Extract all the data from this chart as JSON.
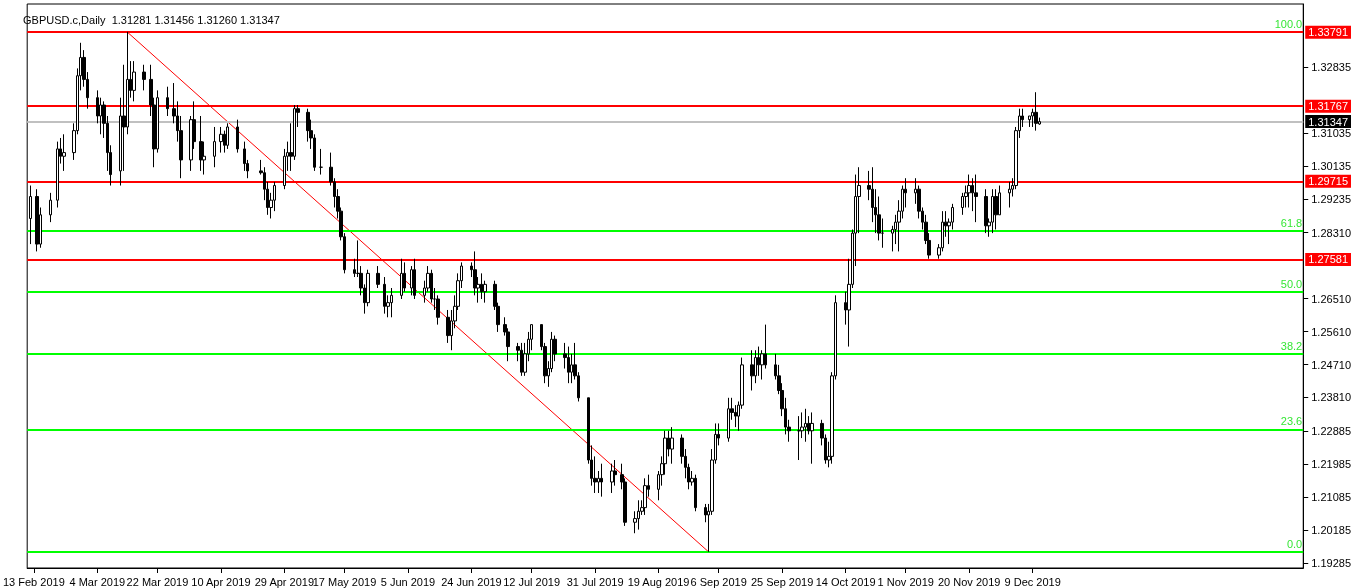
{
  "chart_data": {
    "type": "candlestick",
    "title": "GBPUSD.c,Daily  1.31281 1.31456 1.31260 1.31347",
    "x": [
      "2019-02-12",
      "2019-02-14",
      "2019-02-15",
      "2019-02-18",
      "2019-02-20",
      "2019-02-21",
      "2019-02-22",
      "2019-02-25",
      "2019-02-26",
      "2019-02-27",
      "2019-02-28",
      "2019-03-01",
      "2019-03-04",
      "2019-03-05",
      "2019-03-06",
      "2019-03-07",
      "2019-03-08",
      "2019-03-11",
      "2019-03-12",
      "2019-03-13",
      "2019-03-14",
      "2019-03-15",
      "2019-03-18",
      "2019-03-20",
      "2019-03-21",
      "2019-03-22",
      "2019-03-25",
      "2019-03-27",
      "2019-03-28",
      "2019-03-29",
      "2019-04-01",
      "2019-04-02",
      "2019-04-04",
      "2019-04-05",
      "2019-04-08",
      "2019-04-10",
      "2019-04-11",
      "2019-04-12",
      "2019-04-15",
      "2019-04-17",
      "2019-04-18",
      "2019-04-22",
      "2019-04-23",
      "2019-04-24",
      "2019-04-25",
      "2019-04-26",
      "2019-04-29",
      "2019-04-30",
      "2019-05-01",
      "2019-05-02",
      "2019-05-03",
      "2019-05-06",
      "2019-05-07",
      "2019-05-08",
      "2019-05-10",
      "2019-05-13",
      "2019-05-14",
      "2019-05-15",
      "2019-05-16",
      "2019-05-17",
      "2019-05-20",
      "2019-05-21",
      "2019-05-22",
      "2019-05-23",
      "2019-05-24",
      "2019-05-27",
      "2019-05-29",
      "2019-05-30",
      "2019-05-31",
      "2019-06-03",
      "2019-06-04",
      "2019-06-06",
      "2019-06-07",
      "2019-06-10",
      "2019-06-11",
      "2019-06-12",
      "2019-06-13",
      "2019-06-14",
      "2019-06-17",
      "2019-06-18",
      "2019-06-19",
      "2019-06-20",
      "2019-06-21",
      "2019-06-24",
      "2019-06-25",
      "2019-06-26",
      "2019-06-27",
      "2019-06-28",
      "2019-07-01",
      "2019-07-02",
      "2019-07-04",
      "2019-07-05",
      "2019-07-08",
      "2019-07-09",
      "2019-07-10",
      "2019-07-11",
      "2019-07-12",
      "2019-07-15",
      "2019-07-16",
      "2019-07-17",
      "2019-07-18",
      "2019-07-19",
      "2019-07-22",
      "2019-07-23",
      "2019-07-24",
      "2019-07-25",
      "2019-07-26",
      "2019-07-29",
      "2019-07-30",
      "2019-07-31",
      "2019-08-01",
      "2019-08-02",
      "2019-08-05",
      "2019-08-06",
      "2019-08-08",
      "2019-08-09",
      "2019-08-12",
      "2019-08-13",
      "2019-08-14",
      "2019-08-15",
      "2019-08-16",
      "2019-08-19",
      "2019-08-20",
      "2019-08-21",
      "2019-08-22",
      "2019-08-23",
      "2019-08-26",
      "2019-08-27",
      "2019-08-28",
      "2019-08-29",
      "2019-08-30",
      "2019-09-02",
      "2019-09-03",
      "2019-09-04",
      "2019-09-05",
      "2019-09-06",
      "2019-09-09",
      "2019-09-10",
      "2019-09-11",
      "2019-09-12",
      "2019-09-13",
      "2019-09-16",
      "2019-09-17",
      "2019-09-18",
      "2019-09-19",
      "2019-09-20",
      "2019-09-23",
      "2019-09-24",
      "2019-09-25",
      "2019-09-26",
      "2019-09-27",
      "2019-09-30",
      "2019-10-01",
      "2019-10-02",
      "2019-10-03",
      "2019-10-04",
      "2019-10-07",
      "2019-10-08",
      "2019-10-09",
      "2019-10-10",
      "2019-10-11",
      "2019-10-14",
      "2019-10-15",
      "2019-10-16",
      "2019-10-17",
      "2019-10-18",
      "2019-10-21",
      "2019-10-22",
      "2019-10-23",
      "2019-10-24",
      "2019-10-25",
      "2019-10-28",
      "2019-10-29",
      "2019-10-30",
      "2019-10-31",
      "2019-11-01",
      "2019-11-04",
      "2019-11-05",
      "2019-11-06",
      "2019-11-07",
      "2019-11-08",
      "2019-11-11",
      "2019-11-12",
      "2019-11-13",
      "2019-11-14",
      "2019-11-15",
      "2019-11-18",
      "2019-11-19",
      "2019-11-20",
      "2019-11-21",
      "2019-11-22",
      "2019-11-25",
      "2019-11-26",
      "2019-11-27",
      "2019-11-28",
      "2019-11-29",
      "2019-12-02",
      "2019-12-03",
      "2019-12-04",
      "2019-12-05",
      "2019-12-06",
      "2019-12-08",
      "2019-12-09",
      "2019-12-10",
      "2019-12-11"
    ],
    "ohlc": [
      [
        1.287,
        1.296,
        1.28,
        1.293
      ],
      [
        1.293,
        1.295,
        1.278,
        1.28
      ],
      [
        1.28,
        1.29,
        1.279,
        1.288
      ],
      [
        1.288,
        1.294,
        1.286,
        1.292
      ],
      [
        1.292,
        1.308,
        1.29,
        1.306
      ],
      [
        1.306,
        1.309,
        1.302,
        1.304
      ],
      [
        1.304,
        1.31,
        1.3,
        1.305
      ],
      [
        1.305,
        1.313,
        1.303,
        1.311
      ],
      [
        1.311,
        1.328,
        1.31,
        1.326
      ],
      [
        1.326,
        1.335,
        1.322,
        1.331
      ],
      [
        1.331,
        1.333,
        1.323,
        1.325
      ],
      [
        1.325,
        1.327,
        1.317,
        1.32
      ],
      [
        1.32,
        1.322,
        1.313,
        1.315
      ],
      [
        1.315,
        1.32,
        1.31,
        1.318
      ],
      [
        1.318,
        1.319,
        1.309,
        1.313
      ],
      [
        1.313,
        1.315,
        1.3,
        1.305
      ],
      [
        1.305,
        1.307,
        1.296,
        1.299
      ],
      [
        1.3,
        1.32,
        1.296,
        1.315
      ],
      [
        1.315,
        1.329,
        1.3,
        1.312
      ],
      [
        1.312,
        1.338,
        1.31,
        1.325
      ],
      [
        1.325,
        1.33,
        1.32,
        1.322
      ],
      [
        1.322,
        1.33,
        1.319,
        1.327
      ],
      [
        1.327,
        1.329,
        1.322,
        1.325
      ],
      [
        1.325,
        1.329,
        1.315,
        1.318
      ],
      [
        1.318,
        1.32,
        1.301,
        1.306
      ],
      [
        1.306,
        1.322,
        1.305,
        1.32
      ],
      [
        1.32,
        1.323,
        1.315,
        1.317
      ],
      [
        1.317,
        1.324,
        1.313,
        1.315
      ],
      [
        1.315,
        1.319,
        1.308,
        1.311
      ],
      [
        1.311,
        1.315,
        1.298,
        1.303
      ],
      [
        1.303,
        1.315,
        1.3,
        1.314
      ],
      [
        1.314,
        1.319,
        1.306,
        1.308
      ],
      [
        1.308,
        1.315,
        1.3,
        1.303
      ],
      [
        1.303,
        1.308,
        1.299,
        1.304
      ],
      [
        1.304,
        1.312,
        1.301,
        1.308
      ],
      [
        1.308,
        1.312,
        1.305,
        1.31
      ],
      [
        1.31,
        1.311,
        1.305,
        1.307
      ],
      [
        1.307,
        1.313,
        1.306,
        1.312
      ],
      [
        1.312,
        1.314,
        1.305,
        1.306
      ],
      [
        1.306,
        1.308,
        1.3,
        1.302
      ],
      [
        1.302,
        1.303,
        1.298,
        1.3
      ],
      [
        1.3,
        1.303,
        1.299,
        1.2995
      ],
      [
        1.2995,
        1.301,
        1.292,
        1.295
      ],
      [
        1.295,
        1.297,
        1.288,
        1.29
      ],
      [
        1.29,
        1.294,
        1.287,
        1.292
      ],
      [
        1.292,
        1.297,
        1.289,
        1.296
      ],
      [
        1.296,
        1.306,
        1.295,
        1.304
      ],
      [
        1.304,
        1.308,
        1.3,
        1.305
      ],
      [
        1.305,
        1.313,
        1.3,
        1.304
      ],
      [
        1.304,
        1.318,
        1.303,
        1.317
      ],
      [
        1.317,
        1.318,
        1.312,
        1.316
      ],
      [
        1.316,
        1.317,
        1.308,
        1.311
      ],
      [
        1.311,
        1.314,
        1.306,
        1.309
      ],
      [
        1.309,
        1.31,
        1.3,
        1.301
      ],
      [
        1.301,
        1.306,
        1.299,
        1.301
      ],
      [
        1.301,
        1.305,
        1.296,
        1.297
      ],
      [
        1.297,
        1.298,
        1.29,
        1.293
      ],
      [
        1.293,
        1.295,
        1.287,
        1.289
      ],
      [
        1.289,
        1.29,
        1.281,
        1.282
      ],
      [
        1.282,
        1.283,
        1.272,
        1.273
      ],
      [
        1.273,
        1.276,
        1.271,
        1.272
      ],
      [
        1.272,
        1.281,
        1.271,
        1.272
      ],
      [
        1.272,
        1.274,
        1.266,
        1.268
      ],
      [
        1.268,
        1.269,
        1.261,
        1.264
      ],
      [
        1.264,
        1.273,
        1.263,
        1.272
      ],
      [
        1.272,
        1.274,
        1.268,
        1.269
      ],
      [
        1.269,
        1.271,
        1.261,
        1.263
      ],
      [
        1.263,
        1.266,
        1.26,
        1.264
      ],
      [
        1.264,
        1.268,
        1.26,
        1.266
      ],
      [
        1.266,
        1.276,
        1.265,
        1.272
      ],
      [
        1.272,
        1.275,
        1.267,
        1.268
      ],
      [
        1.268,
        1.274,
        1.266,
        1.273
      ],
      [
        1.273,
        1.276,
        1.265,
        1.266
      ],
      [
        1.266,
        1.27,
        1.264,
        1.268
      ],
      [
        1.268,
        1.274,
        1.267,
        1.272
      ],
      [
        1.272,
        1.273,
        1.264,
        1.265
      ],
      [
        1.265,
        1.268,
        1.262,
        1.265
      ],
      [
        1.265,
        1.266,
        1.258,
        1.26
      ],
      [
        1.26,
        1.262,
        1.253,
        1.255
      ],
      [
        1.255,
        1.262,
        1.251,
        1.259
      ],
      [
        1.259,
        1.266,
        1.257,
        1.263
      ],
      [
        1.263,
        1.272,
        1.262,
        1.27
      ],
      [
        1.27,
        1.275,
        1.268,
        1.274
      ],
      [
        1.274,
        1.275,
        1.271,
        1.273
      ],
      [
        1.273,
        1.278,
        1.266,
        1.268
      ],
      [
        1.268,
        1.271,
        1.264,
        1.269
      ],
      [
        1.269,
        1.272,
        1.265,
        1.267
      ],
      [
        1.267,
        1.27,
        1.264,
        1.269
      ],
      [
        1.269,
        1.27,
        1.262,
        1.263
      ],
      [
        1.263,
        1.264,
        1.256,
        1.258
      ],
      [
        1.258,
        1.26,
        1.255,
        1.256
      ],
      [
        1.256,
        1.257,
        1.248,
        1.252
      ],
      [
        1.252,
        1.253,
        1.248,
        1.251
      ],
      [
        1.251,
        1.253,
        1.244,
        1.245
      ],
      [
        1.245,
        1.253,
        1.244,
        1.25
      ],
      [
        1.25,
        1.256,
        1.248,
        1.254
      ],
      [
        1.254,
        1.258,
        1.251,
        1.258
      ],
      [
        1.258,
        1.258,
        1.251,
        1.252
      ],
      [
        1.252,
        1.253,
        1.242,
        1.244
      ],
      [
        1.244,
        1.248,
        1.241,
        1.246
      ],
      [
        1.246,
        1.256,
        1.245,
        1.254
      ],
      [
        1.254,
        1.255,
        1.248,
        1.25
      ],
      [
        1.25,
        1.253,
        1.246,
        1.249
      ],
      [
        1.249,
        1.252,
        1.242,
        1.245
      ],
      [
        1.245,
        1.25,
        1.242,
        1.247
      ],
      [
        1.247,
        1.253,
        1.243,
        1.244
      ],
      [
        1.244,
        1.245,
        1.237,
        1.238
      ],
      [
        1.238,
        1.238,
        1.22,
        1.221
      ],
      [
        1.221,
        1.225,
        1.214,
        1.216
      ],
      [
        1.216,
        1.222,
        1.212,
        1.215
      ],
      [
        1.215,
        1.218,
        1.212,
        1.216
      ],
      [
        1.216,
        1.22,
        1.211,
        1.215
      ],
      [
        1.215,
        1.22,
        1.212,
        1.218
      ],
      [
        1.218,
        1.221,
        1.214,
        1.217
      ],
      [
        1.217,
        1.22,
        1.213,
        1.215
      ],
      [
        1.215,
        1.216,
        1.203,
        1.204
      ],
      [
        1.204,
        1.207,
        1.201,
        1.205
      ],
      [
        1.205,
        1.21,
        1.202,
        1.207
      ],
      [
        1.207,
        1.21,
        1.206,
        1.208
      ],
      [
        1.208,
        1.216,
        1.206,
        1.214
      ],
      [
        1.214,
        1.217,
        1.211,
        1.213
      ],
      [
        1.213,
        1.218,
        1.21,
        1.217
      ],
      [
        1.217,
        1.222,
        1.214,
        1.22
      ],
      [
        1.22,
        1.229,
        1.217,
        1.227
      ],
      [
        1.227,
        1.229,
        1.222,
        1.224
      ],
      [
        1.224,
        1.23,
        1.22,
        1.227
      ],
      [
        1.227,
        1.228,
        1.22,
        1.222
      ],
      [
        1.222,
        1.224,
        1.216,
        1.219
      ],
      [
        1.219,
        1.22,
        1.213,
        1.215
      ],
      [
        1.215,
        1.218,
        1.214,
        1.216
      ],
      [
        1.216,
        1.217,
        1.207,
        1.208
      ],
      [
        1.208,
        1.209,
        1.204,
        1.206
      ],
      [
        1.206,
        1.209,
        1.1959,
        1.207
      ],
      [
        1.207,
        1.224,
        1.206,
        1.221
      ],
      [
        1.221,
        1.231,
        1.22,
        1.228
      ],
      [
        1.228,
        1.231,
        1.225,
        1.227
      ],
      [
        1.227,
        1.238,
        1.226,
        1.235
      ],
      [
        1.235,
        1.238,
        1.232,
        1.234
      ],
      [
        1.234,
        1.236,
        1.23,
        1.233
      ],
      [
        1.233,
        1.237,
        1.229,
        1.236
      ],
      [
        1.236,
        1.249,
        1.235,
        1.247
      ],
      [
        1.247,
        1.251,
        1.24,
        1.244
      ],
      [
        1.244,
        1.251,
        1.242,
        1.249
      ],
      [
        1.249,
        1.252,
        1.244,
        1.247
      ],
      [
        1.247,
        1.251,
        1.243,
        1.25
      ],
      [
        1.25,
        1.258,
        1.246,
        1.247
      ],
      [
        1.247,
        1.25,
        1.243,
        1.244
      ],
      [
        1.244,
        1.247,
        1.239,
        1.24
      ],
      [
        1.24,
        1.242,
        1.233,
        1.235
      ],
      [
        1.235,
        1.238,
        1.228,
        1.23
      ],
      [
        1.23,
        1.232,
        1.226,
        1.229
      ],
      [
        1.229,
        1.233,
        1.221,
        1.229
      ],
      [
        1.229,
        1.234,
        1.227,
        1.23
      ],
      [
        1.23,
        1.235,
        1.226,
        1.231
      ],
      [
        1.231,
        1.233,
        1.228,
        1.229
      ],
      [
        1.229,
        1.234,
        1.22,
        1.231
      ],
      [
        1.231,
        1.232,
        1.225,
        1.227
      ],
      [
        1.227,
        1.228,
        1.22,
        1.221
      ],
      [
        1.221,
        1.226,
        1.219,
        1.222
      ],
      [
        1.222,
        1.245,
        1.22,
        1.244
      ],
      [
        1.244,
        1.266,
        1.243,
        1.264
      ],
      [
        1.264,
        1.267,
        1.258,
        1.262
      ],
      [
        1.262,
        1.276,
        1.252,
        1.269
      ],
      [
        1.269,
        1.284,
        1.268,
        1.283
      ],
      [
        1.283,
        1.299,
        1.274,
        1.293
      ],
      [
        1.293,
        1.301,
        1.283,
        1.296
      ],
      [
        1.296,
        1.3,
        1.292,
        1.295
      ],
      [
        1.295,
        1.301,
        1.286,
        1.29
      ],
      [
        1.29,
        1.295,
        1.283,
        1.288
      ],
      [
        1.288,
        1.293,
        1.281,
        1.283
      ],
      [
        1.283,
        1.287,
        1.279,
        1.283
      ],
      [
        1.283,
        1.285,
        1.278,
        1.284
      ],
      [
        1.284,
        1.288,
        1.28,
        1.286
      ],
      [
        1.286,
        1.292,
        1.278,
        1.289
      ],
      [
        1.289,
        1.296,
        1.287,
        1.295
      ],
      [
        1.295,
        1.298,
        1.29,
        1.294
      ],
      [
        1.294,
        1.298,
        1.291,
        1.295
      ],
      [
        1.295,
        1.296,
        1.287,
        1.289
      ],
      [
        1.289,
        1.29,
        1.284,
        1.286
      ],
      [
        1.286,
        1.288,
        1.28,
        1.281
      ],
      [
        1.281,
        1.283,
        1.276,
        1.277
      ],
      [
        1.277,
        1.28,
        1.276,
        1.279
      ],
      [
        1.279,
        1.289,
        1.278,
        1.286
      ],
      [
        1.286,
        1.289,
        1.282,
        1.285
      ],
      [
        1.285,
        1.287,
        1.28,
        1.286
      ],
      [
        1.286,
        1.291,
        1.284,
        1.29
      ],
      [
        1.29,
        1.294,
        1.288,
        1.293
      ],
      [
        1.293,
        1.296,
        1.29,
        1.294
      ],
      [
        1.294,
        1.299,
        1.29,
        1.296
      ],
      [
        1.296,
        1.298,
        1.289,
        1.294
      ],
      [
        1.294,
        1.299,
        1.286,
        1.293
      ],
      [
        1.293,
        1.295,
        1.283,
        1.285
      ],
      [
        1.285,
        1.287,
        1.282,
        1.286
      ],
      [
        1.286,
        1.295,
        1.283,
        1.293
      ],
      [
        1.293,
        1.295,
        1.284,
        1.288
      ],
      [
        1.288,
        1.296,
        1.288,
        1.294
      ],
      [
        1.294,
        1.297,
        1.29,
        1.295
      ],
      [
        1.295,
        1.298,
        1.293,
        1.296
      ],
      [
        1.296,
        1.312,
        1.295,
        1.311
      ],
      [
        1.311,
        1.317,
        1.309,
        1.315
      ],
      [
        1.315,
        1.317,
        1.312,
        1.314
      ],
      [
        1.314,
        1.315,
        1.312,
        1.315
      ],
      [
        1.315,
        1.317,
        1.312,
        1.316
      ],
      [
        1.316,
        1.3215,
        1.311,
        1.313
      ],
      [
        1.31281,
        1.31456,
        1.3126,
        1.31347
      ]
    ],
    "series": [
      {
        "type": "line",
        "x": [
          "2019-03-13",
          "2019-09-03"
        ],
        "values": [
          1.33791,
          1.1959
        ],
        "color": "#ff0000"
      }
    ],
    "xlim": [
      "2019-02-11",
      "2020-02-28"
    ],
    "xticks": [
      {
        "value": "2019-02-13",
        "label": "13 Feb 2019"
      },
      {
        "value": "2019-03-04",
        "label": "4 Mar 2019"
      },
      {
        "value": "2019-03-22",
        "label": "22 Mar 2019"
      },
      {
        "value": "2019-04-10",
        "label": "10 Apr 2019"
      },
      {
        "value": "2019-04-29",
        "label": "29 Apr 2019"
      },
      {
        "value": "2019-05-17",
        "label": "17 May 2019"
      },
      {
        "value": "2019-06-05",
        "label": "5 Jun 2019"
      },
      {
        "value": "2019-06-24",
        "label": "24 Jun 2019"
      },
      {
        "value": "2019-07-12",
        "label": "12 Jul 2019"
      },
      {
        "value": "2019-07-31",
        "label": "31 Jul 2019"
      },
      {
        "value": "2019-08-19",
        "label": "19 Aug 2019"
      },
      {
        "value": "2019-09-06",
        "label": "6 Sep 2019"
      },
      {
        "value": "2019-09-25",
        "label": "25 Sep 2019"
      },
      {
        "value": "2019-10-14",
        "label": "14 Oct 2019"
      },
      {
        "value": "2019-11-01",
        "label": "1 Nov 2019"
      },
      {
        "value": "2019-11-20",
        "label": "20 Nov 2019"
      },
      {
        "value": "2019-12-09",
        "label": "9 Dec 2019"
      }
    ],
    "ylim": [
      1.1915,
      1.3456
    ],
    "yticks": [
      1.19285,
      1.20185,
      1.21085,
      1.21985,
      1.22885,
      {
        "value": 1.2381,
        "label": "1.23810"
      },
      {
        "value": 1.2471,
        "label": "1.24710"
      },
      {
        "value": 1.2561,
        "label": "1.25610"
      },
      {
        "value": 1.2651,
        "label": "1.26510"
      },
      {
        "value": 1.2831,
        "label": "1.28310"
      },
      1.29235,
      1.30135,
      1.31035,
      1.32835
    ],
    "ref_lines": [
      {
        "axis": "y",
        "value": 1.33791,
        "label": "1.33791",
        "color": "#ff0000"
      },
      {
        "axis": "y",
        "value": 1.31767,
        "label": "1.31767",
        "color": "#ff0000"
      },
      {
        "axis": "y",
        "value": 1.31347,
        "label": "1.31347",
        "color": "#c0c0c0"
      },
      {
        "axis": "y",
        "value": 1.29715,
        "label": "1.29715",
        "color": "#ff0000"
      },
      {
        "axis": "y",
        "value": 1.27581,
        "label": "1.27581",
        "color": "#ff0000"
      },
      {
        "axis": "y",
        "value": 1.2837,
        "color": "#00ff00"
      },
      {
        "axis": "y",
        "value": 1.2669,
        "color": "#00ff00"
      },
      {
        "axis": "y",
        "value": 1.2501,
        "color": "#00ff00"
      },
      {
        "axis": "y",
        "value": 1.2294,
        "color": "#00ff00"
      },
      {
        "axis": "y",
        "value": 1.1959,
        "color": "#00ff00"
      }
    ],
    "annotations": [
      {
        "text": "100.0",
        "x": "2020-02-28",
        "y": 1.33791
      },
      {
        "text": "61.8",
        "x": "2020-02-28",
        "y": 1.2837
      },
      {
        "text": "50.0",
        "x": "2020-02-28",
        "y": 1.2669
      },
      {
        "text": "38.2",
        "x": "2020-02-28",
        "y": 1.2501
      },
      {
        "text": "23.6",
        "x": "2020-02-28",
        "y": 1.2294
      },
      {
        "text": "0.0",
        "x": "2020-02-28",
        "y": 1.1959
      }
    ]
  }
}
